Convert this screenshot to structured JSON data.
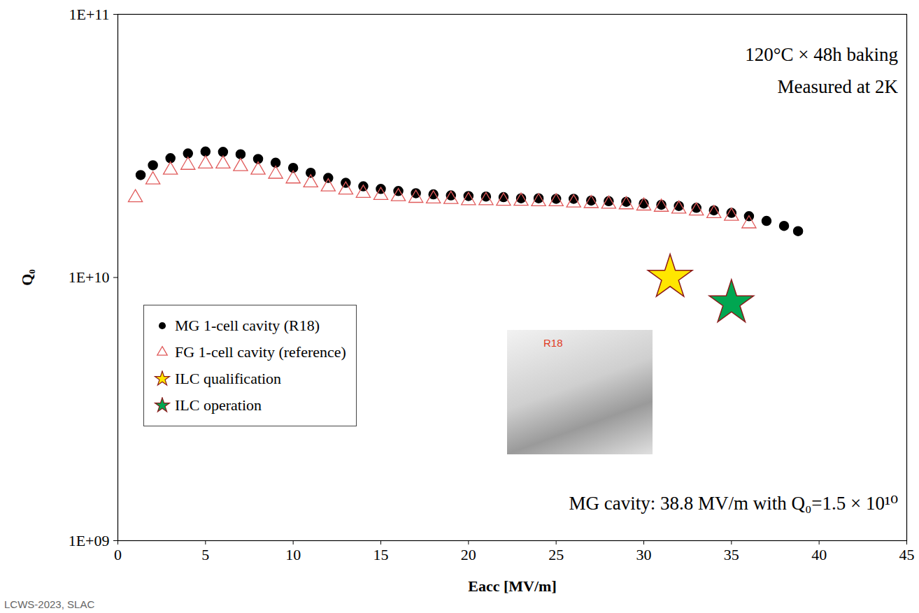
{
  "chart_data": {
    "type": "scatter",
    "xlabel": "Eacc [MV/m]",
    "ylabel": "Q₀",
    "xlim": [
      0,
      45
    ],
    "xticks": [
      0,
      5,
      10,
      15,
      20,
      25,
      30,
      35,
      40,
      45
    ],
    "ylim": [
      1000000000.0,
      100000000000.0
    ],
    "yticks": [
      {
        "value": 1000000000.0,
        "label": "1E+09"
      },
      {
        "value": 10000000000.0,
        "label": "1E+10"
      },
      {
        "value": 100000000000.0,
        "label": "1E+11"
      }
    ],
    "log": "y",
    "legend": "left",
    "series": [
      {
        "name": "MG 1-cell cavity (R18)",
        "color": "#000000",
        "marker": "circle",
        "x": [
          1.3,
          2,
          3,
          4,
          5,
          6,
          7,
          8,
          9,
          10,
          11,
          12,
          13,
          14,
          15,
          16,
          17,
          18,
          19,
          20,
          21,
          22,
          23,
          24,
          25,
          26,
          27,
          28,
          29,
          30,
          31,
          32,
          33,
          34,
          35,
          36,
          37,
          38,
          38.8
        ],
        "values": [
          24500000000.0,
          26700000000.0,
          28400000000.0,
          29600000000.0,
          30100000000.0,
          30000000000.0,
          29400000000.0,
          28200000000.0,
          27300000000.0,
          26100000000.0,
          25000000000.0,
          23900000000.0,
          22900000000.0,
          22200000000.0,
          21700000000.0,
          21300000000.0,
          20900000000.0,
          20700000000.0,
          20500000000.0,
          20400000000.0,
          20300000000.0,
          20200000000.0,
          20000000000.0,
          20000000000.0,
          19900000000.0,
          19900000000.0,
          19600000000.0,
          19500000000.0,
          19400000000.0,
          19100000000.0,
          18900000000.0,
          18700000000.0,
          18400000000.0,
          18000000000.0,
          17600000000.0,
          17100000000.0,
          16400000000.0,
          15700000000.0,
          15000000000.0
        ]
      },
      {
        "name": "FG 1-cell cavity (reference)",
        "color": "#e05a5a",
        "marker": "triangle-open",
        "x": [
          1,
          2,
          3,
          4,
          5,
          6,
          7,
          8,
          9,
          10,
          11,
          12,
          13,
          14,
          15,
          16,
          17,
          18,
          19,
          20,
          21,
          22,
          23,
          24,
          25,
          26,
          27,
          28,
          29,
          30,
          31,
          32,
          33,
          34,
          35,
          36
        ],
        "values": [
          20100000000.0,
          23500000000.0,
          25600000000.0,
          26700000000.0,
          27000000000.0,
          27000000000.0,
          26400000000.0,
          25600000000.0,
          24700000000.0,
          23700000000.0,
          22900000000.0,
          22100000000.0,
          21500000000.0,
          20900000000.0,
          20500000000.0,
          20300000000.0,
          20000000000.0,
          19900000000.0,
          19800000000.0,
          19600000000.0,
          19600000000.0,
          19500000000.0,
          19500000000.0,
          19400000000.0,
          19400000000.0,
          19200000000.0,
          19100000000.0,
          19000000000.0,
          18900000000.0,
          18700000000.0,
          18500000000.0,
          18200000000.0,
          17900000000.0,
          17500000000.0,
          17100000000.0,
          16000000000.0
        ]
      },
      {
        "name": "ILC qualification",
        "color": "#ffe600",
        "marker": "star",
        "x": [
          31.5
        ],
        "values": [
          10000000000.0
        ]
      },
      {
        "name": "ILC operation",
        "color": "#00a651",
        "marker": "star",
        "x": [
          35
        ],
        "values": [
          8000000000.0
        ]
      }
    ],
    "annotations": [
      {
        "text": "120°C × 48h baking",
        "x": 44.5,
        "y": 70000000000.0
      },
      {
        "text": "Measured at 2K",
        "x": 44.5,
        "y": 53000000000.0
      },
      {
        "text": "MG cavity: 38.8 MV/m with Q₀=1.5 × 10¹⁰",
        "x": 44.5,
        "y": 1380000000.0
      }
    ],
    "inset_label": "R18",
    "footer": "LCWS-2023, SLAC"
  }
}
